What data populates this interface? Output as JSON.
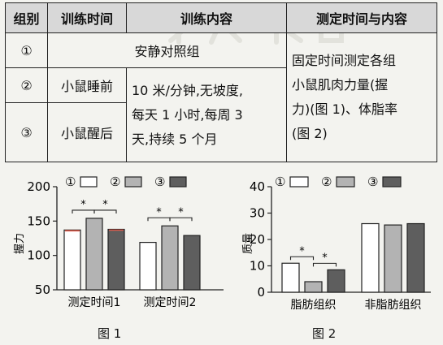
{
  "table": {
    "headers": [
      "组别",
      "训练时间",
      "训练内容",
      "测定时间与内容"
    ],
    "rows": [
      {
        "group": "①",
        "content": "安静对照组"
      },
      {
        "group": "②",
        "time": "小鼠睡前"
      },
      {
        "group": "③",
        "time": "小鼠醒后"
      }
    ],
    "training_content_lines": [
      "10 米/分钟,无坡度,",
      "每天 1 小时,每周 3",
      "天,持续 5 个月"
    ],
    "measurement_lines": [
      "固定时间测定各组",
      "小鼠肌肉力量(握",
      "力)(图 1)、体脂率",
      "(图 2)"
    ]
  },
  "legend": {
    "items": [
      "①",
      "②",
      "③"
    ],
    "colors": [
      "#ffffff",
      "#b3b3b3",
      "#5e5e5e"
    ]
  },
  "significance_mark": "*",
  "chart_data": [
    {
      "type": "bar",
      "caption": "图 1",
      "ylabel": "握力",
      "ylim": [
        50,
        200
      ],
      "yticks": [
        50,
        100,
        150,
        200
      ],
      "categories": [
        "测定时间1",
        "测定时间2"
      ],
      "series": [
        {
          "name": "①",
          "values": [
            137,
            119
          ]
        },
        {
          "name": "②",
          "values": [
            154,
            143
          ]
        },
        {
          "name": "③",
          "values": [
            138,
            129
          ]
        }
      ]
    },
    {
      "type": "bar",
      "caption": "图 2",
      "ylabel": "质量",
      "ylim": [
        0,
        40
      ],
      "yticks": [
        0,
        10,
        20,
        30,
        40
      ],
      "categories": [
        "脂肪组织",
        "非脂肪组织"
      ],
      "series": [
        {
          "name": "①",
          "values": [
            11,
            26
          ]
        },
        {
          "name": "②",
          "values": [
            4,
            25.5
          ]
        },
        {
          "name": "③",
          "values": [
            8.5,
            26
          ]
        }
      ]
    }
  ]
}
